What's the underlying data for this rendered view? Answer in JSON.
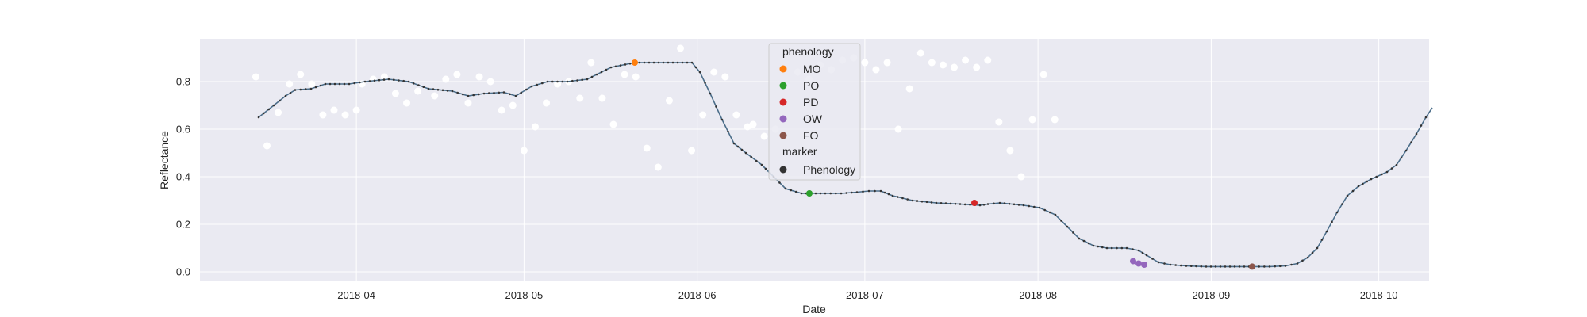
{
  "chart_data": {
    "type": "scatter",
    "title": "",
    "xlabel": "Date",
    "ylabel": "Reflectance",
    "x_tick_labels": [
      "2018-04",
      "2018-05",
      "2018-06",
      "2018-07",
      "2018-08",
      "2018-09",
      "2018-10"
    ],
    "y_tick_labels": [
      "0.0",
      "0.2",
      "0.4",
      "0.6",
      "0.8"
    ],
    "xlim": [
      "2018-03-04",
      "2018-10-10"
    ],
    "ylim": [
      -0.04,
      0.98
    ],
    "grid": true,
    "legend_placement": "top-center",
    "legend": {
      "phenology_title": "phenology",
      "phenology_items": [
        {
          "label": "MO",
          "color": "#ff7f0e"
        },
        {
          "label": "PO",
          "color": "#2ca02c"
        },
        {
          "label": "PD",
          "color": "#d62728"
        },
        {
          "label": "OW",
          "color": "#9467bd"
        },
        {
          "label": "FO",
          "color": "#8c564b"
        }
      ],
      "marker_title": "marker",
      "marker_items": [
        {
          "label": "Phenology",
          "color": "#333333"
        }
      ]
    },
    "colors": {
      "plot_background": "#eaeaf2",
      "grid": "#ffffff",
      "observations": "#ffffff",
      "smoothed_line": "#4c6e8a",
      "smoothed_dots": "#333333"
    },
    "series": [
      {
        "kind": "observations",
        "points": [
          [
            "2018-03-14",
            0.82
          ],
          [
            "2018-03-16",
            0.53
          ],
          [
            "2018-03-18",
            0.67
          ],
          [
            "2018-03-20",
            0.79
          ],
          [
            "2018-03-22",
            0.83
          ],
          [
            "2018-03-24",
            0.79
          ],
          [
            "2018-03-26",
            0.66
          ],
          [
            "2018-03-28",
            0.68
          ],
          [
            "2018-03-30",
            0.66
          ],
          [
            "2018-04-01",
            0.68
          ],
          [
            "2018-04-02",
            0.79
          ],
          [
            "2018-04-04",
            0.81
          ],
          [
            "2018-04-06",
            0.82
          ],
          [
            "2018-04-08",
            0.75
          ],
          [
            "2018-04-10",
            0.71
          ],
          [
            "2018-04-12",
            0.76
          ],
          [
            "2018-04-15",
            0.74
          ],
          [
            "2018-04-17",
            0.81
          ],
          [
            "2018-04-19",
            0.83
          ],
          [
            "2018-04-21",
            0.71
          ],
          [
            "2018-04-23",
            0.82
          ],
          [
            "2018-04-25",
            0.8
          ],
          [
            "2018-04-27",
            0.68
          ],
          [
            "2018-04-29",
            0.7
          ],
          [
            "2018-05-01",
            0.51
          ],
          [
            "2018-05-03",
            0.61
          ],
          [
            "2018-05-05",
            0.71
          ],
          [
            "2018-05-07",
            0.79
          ],
          [
            "2018-05-09",
            0.8
          ],
          [
            "2018-05-11",
            0.73
          ],
          [
            "2018-05-13",
            0.88
          ],
          [
            "2018-05-15",
            0.73
          ],
          [
            "2018-05-17",
            0.62
          ],
          [
            "2018-05-19",
            0.83
          ],
          [
            "2018-05-21",
            0.82
          ],
          [
            "2018-05-23",
            0.52
          ],
          [
            "2018-05-25",
            0.44
          ],
          [
            "2018-05-27",
            0.72
          ],
          [
            "2018-05-29",
            0.94
          ],
          [
            "2018-05-31",
            0.51
          ],
          [
            "2018-06-02",
            0.66
          ],
          [
            "2018-06-04",
            0.84
          ],
          [
            "2018-06-06",
            0.82
          ],
          [
            "2018-06-08",
            0.66
          ],
          [
            "2018-06-10",
            0.61
          ],
          [
            "2018-06-11",
            0.62
          ],
          [
            "2018-06-13",
            0.57
          ],
          [
            "2018-06-15",
            0.6
          ],
          [
            "2018-06-17",
            0.78
          ],
          [
            "2018-06-19",
            0.84
          ],
          [
            "2018-06-21",
            0.81
          ],
          [
            "2018-06-23",
            0.87
          ],
          [
            "2018-06-25",
            0.85
          ],
          [
            "2018-06-27",
            0.89
          ],
          [
            "2018-06-29",
            0.9
          ],
          [
            "2018-07-01",
            0.88
          ],
          [
            "2018-07-03",
            0.85
          ],
          [
            "2018-07-05",
            0.88
          ],
          [
            "2018-07-07",
            0.6
          ],
          [
            "2018-07-09",
            0.77
          ],
          [
            "2018-07-11",
            0.92
          ],
          [
            "2018-07-13",
            0.88
          ],
          [
            "2018-07-15",
            0.87
          ],
          [
            "2018-07-17",
            0.86
          ],
          [
            "2018-07-19",
            0.89
          ],
          [
            "2018-07-21",
            0.86
          ],
          [
            "2018-07-23",
            0.89
          ],
          [
            "2018-07-25",
            0.63
          ],
          [
            "2018-07-27",
            0.51
          ],
          [
            "2018-07-29",
            0.4
          ],
          [
            "2018-07-31",
            0.64
          ],
          [
            "2018-08-02",
            0.83
          ],
          [
            "2018-08-04",
            0.64
          ]
        ]
      }
    ]
  }
}
